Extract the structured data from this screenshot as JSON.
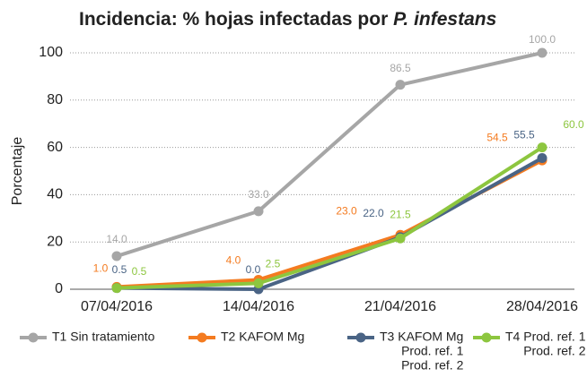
{
  "chart_data": {
    "type": "line",
    "title": [
      "Incidencia: % hojas infectadas por",
      "P. infestans"
    ],
    "ylabel": "Porcentaje",
    "categories": [
      "07/04/2016",
      "14/04/2016",
      "21/04/2016",
      "28/04/2016"
    ],
    "ylim": [
      0,
      100
    ],
    "yticks": [
      0,
      20,
      40,
      60,
      80,
      100
    ],
    "grid": true,
    "legend": "bottom",
    "series": [
      {
        "name": [
          "T1 Sin tratamiento"
        ],
        "color": "#a6a6a6",
        "values": [
          14,
          33,
          86.5,
          100
        ],
        "value_labels": [
          "14.0",
          "33.0",
          "86.5",
          "100.0"
        ]
      },
      {
        "name": [
          "T2 KAFOM Mg"
        ],
        "color": "#f47b20",
        "values": [
          1,
          4,
          23,
          54.5
        ],
        "value_labels": [
          "1.0",
          "4.0",
          "23.0",
          "54.5"
        ]
      },
      {
        "name": [
          "T3 KAFOM Mg",
          "Prod. ref. 1",
          "Prod. ref. 2"
        ],
        "color": "#4a6485",
        "values": [
          0.5,
          0,
          22,
          55.5
        ],
        "value_labels": [
          "0.5",
          "0.0",
          "22.0",
          "55.5"
        ]
      },
      {
        "name": [
          "T4 Prod. ref. 1",
          "Prod. ref. 2"
        ],
        "color": "#8dc63f",
        "values": [
          0.5,
          2.5,
          21.5,
          60
        ],
        "value_labels": [
          "0.5",
          "2.5",
          "21.5",
          "60.0"
        ]
      }
    ]
  }
}
